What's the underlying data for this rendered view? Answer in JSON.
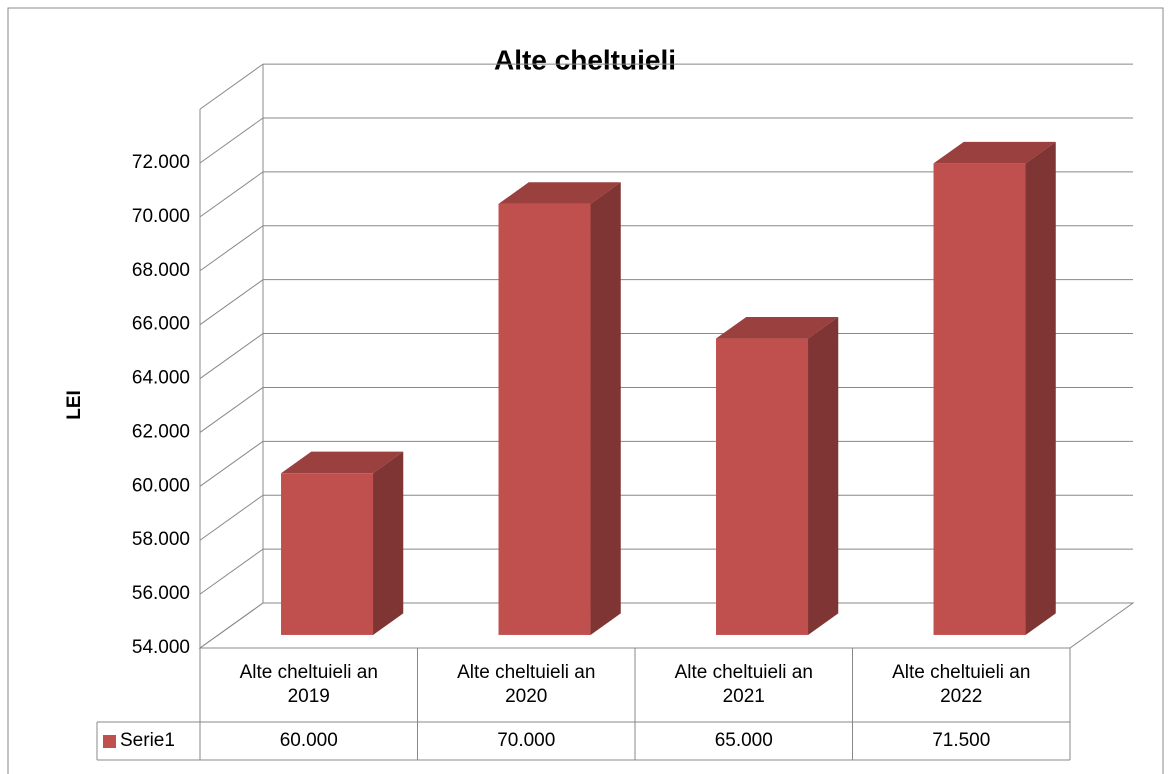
{
  "chart_data": {
    "type": "bar3d",
    "title": "Alte cheltuieli",
    "y_label": "LEI",
    "categories": [
      "Alte cheltuieli an 2019",
      "Alte cheltuieli an 2020",
      "Alte cheltuieli an 2021",
      "Alte cheltuieli an 2022"
    ],
    "series": [
      {
        "name": "Serie1",
        "color": "#c0504d",
        "values": [
          60000,
          70000,
          65000,
          71500
        ],
        "value_labels": [
          "60.000",
          "70.000",
          "65.000",
          "71.500"
        ]
      }
    ],
    "ylim": [
      54000,
      74000
    ],
    "yticks": [
      {
        "value": 54000,
        "label": "54.000"
      },
      {
        "value": 56000,
        "label": "56.000"
      },
      {
        "value": 58000,
        "label": "58.000"
      },
      {
        "value": 60000,
        "label": "60.000"
      },
      {
        "value": 62000,
        "label": "62.000"
      },
      {
        "value": 64000,
        "label": "64.000"
      },
      {
        "value": 66000,
        "label": "66.000"
      },
      {
        "value": 68000,
        "label": "68.000"
      },
      {
        "value": 70000,
        "label": "70.000"
      },
      {
        "value": 72000,
        "label": "72.000"
      }
    ],
    "grid": true,
    "data_table": true
  }
}
